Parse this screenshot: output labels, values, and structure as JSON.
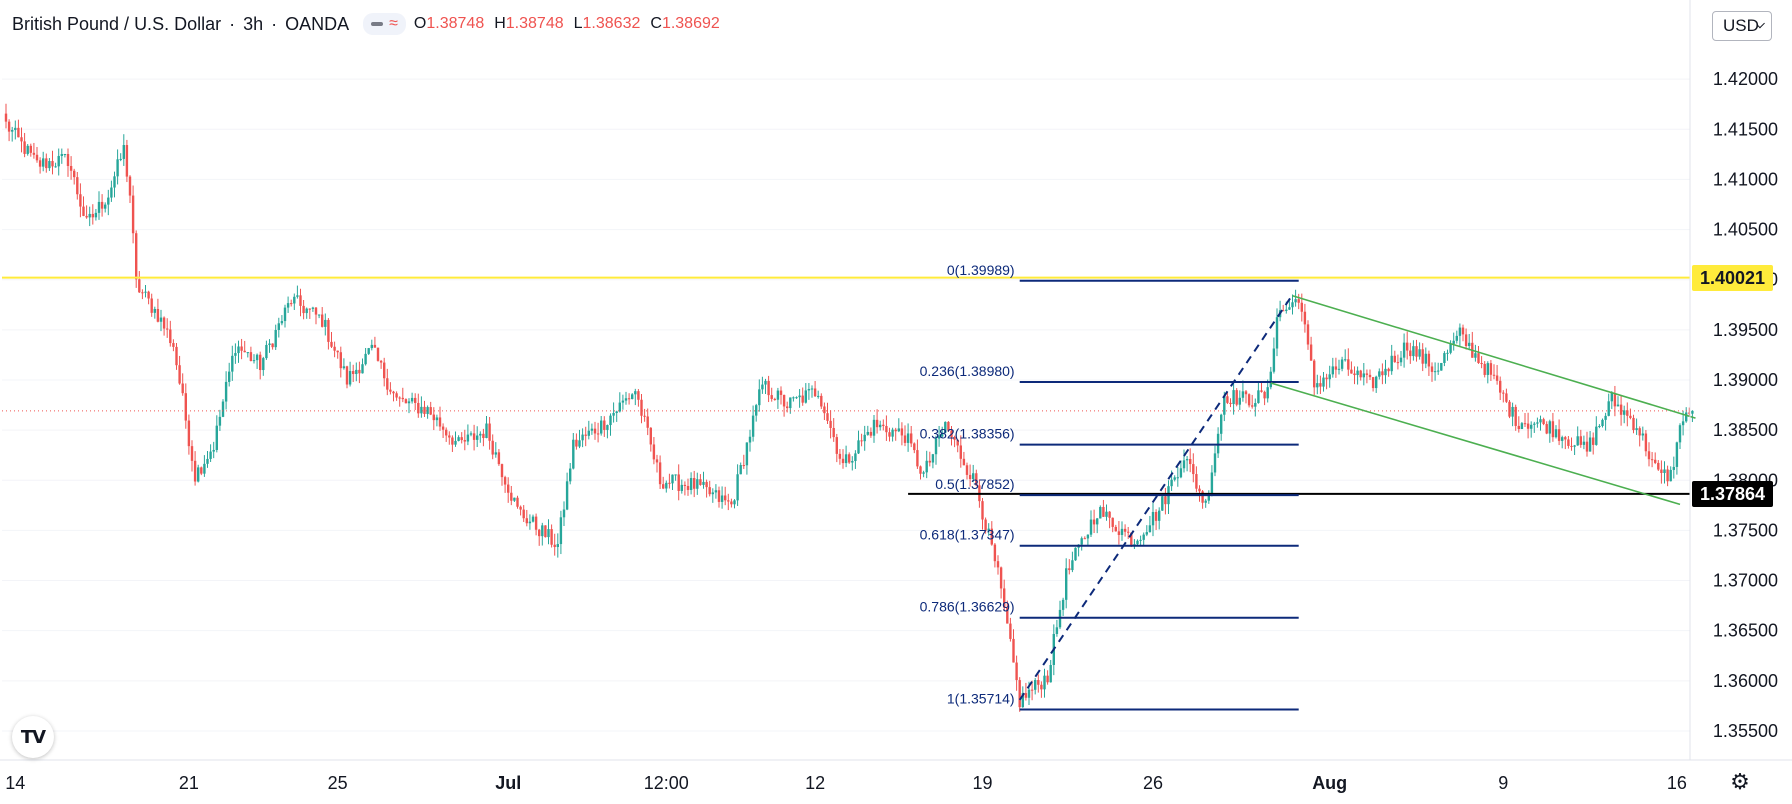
{
  "header": {
    "symbol": "British Pound / U.S. Dollar",
    "interval": "3h",
    "exchange": "OANDA",
    "ohlc": [
      {
        "label": "O",
        "value": "1.38748"
      },
      {
        "label": "H",
        "value": "1.38748"
      },
      {
        "label": "L",
        "value": "1.38632"
      },
      {
        "label": "C",
        "value": "1.38692"
      }
    ]
  },
  "currency_button": "USD",
  "logo_text": "TV",
  "colors": {
    "up": "#26a69a",
    "down": "#ef5350",
    "resistance": "#ffeb3b",
    "support": "#000000",
    "fib": "#0d2a7a",
    "channel": "#4caf50",
    "last_price": "#ef5350"
  },
  "icons": {
    "indicator": "wave-icon",
    "settings": "gear-icon",
    "logo": "tradingview-logo-icon"
  },
  "chart_data": {
    "type": "candlestick",
    "ylim": [
      1.3535,
      1.4255
    ],
    "y_ticks": [
      "1.42000",
      "1.41500",
      "1.41000",
      "1.40500",
      "1.40000",
      "1.39500",
      "1.39000",
      "1.38500",
      "1.38000",
      "1.37500",
      "1.37000",
      "1.36500",
      "1.36000",
      "1.35500"
    ],
    "y_tick_values": [
      1.42,
      1.415,
      1.41,
      1.405,
      1.4,
      1.395,
      1.39,
      1.385,
      1.38,
      1.375,
      1.37,
      1.365,
      1.36,
      1.355
    ],
    "x_ticks": [
      "14",
      "21",
      "25",
      "Jul",
      "12:00",
      "12",
      "19",
      "26",
      "Aug",
      "9",
      "16"
    ],
    "x_tick_bars": [
      3,
      59,
      107,
      162,
      213,
      261,
      315,
      370,
      427,
      483,
      539
    ],
    "bar_count": 545,
    "last_price": 1.38692,
    "horizontal_levels": [
      {
        "name": "resistance",
        "value": 1.40021,
        "label": "1.40021"
      },
      {
        "name": "support",
        "value": 1.37864,
        "label": "1.37864"
      }
    ],
    "fibonacci": {
      "start_bar": 327,
      "end_bar": 417,
      "label_end_bar": 326,
      "levels": [
        {
          "label": "0(1.39989)",
          "value": 1.39989
        },
        {
          "label": "0.236(1.38980)",
          "value": 1.3898
        },
        {
          "label": "0.382(1.38356)",
          "value": 1.38356
        },
        {
          "label": "0.5(1.37852)",
          "value": 1.37852
        },
        {
          "label": "0.618(1.37347)",
          "value": 1.37347
        },
        {
          "label": "0.786(1.36629)",
          "value": 1.36629
        },
        {
          "label": "1(1.35714)",
          "value": 1.35714
        }
      ],
      "trend_from": {
        "bar": 327,
        "value": 1.3581
      },
      "trend_to": {
        "bar": 415,
        "value": 1.3985
      }
    },
    "channel": {
      "upper": {
        "from_bar": 415,
        "from_value": 1.3984,
        "to_bar": 545,
        "to_value": 1.3862
      },
      "lower": {
        "from_bar": 408,
        "from_value": 1.3897,
        "to_bar": 540,
        "to_value": 1.3776
      }
    },
    "anchors": [
      {
        "bar": 0,
        "value": 1.4155
      },
      {
        "bar": 10,
        "value": 1.4115
      },
      {
        "bar": 20,
        "value": 1.412
      },
      {
        "bar": 26,
        "value": 1.4055
      },
      {
        "bar": 33,
        "value": 1.4085
      },
      {
        "bar": 38,
        "value": 1.413
      },
      {
        "bar": 40,
        "value": 1.4085
      },
      {
        "bar": 42,
        "value": 1.3995
      },
      {
        "bar": 49,
        "value": 1.3965
      },
      {
        "bar": 54,
        "value": 1.3935
      },
      {
        "bar": 61,
        "value": 1.3805
      },
      {
        "bar": 67,
        "value": 1.3835
      },
      {
        "bar": 74,
        "value": 1.3935
      },
      {
        "bar": 82,
        "value": 1.3915
      },
      {
        "bar": 92,
        "value": 1.398
      },
      {
        "bar": 102,
        "value": 1.396
      },
      {
        "bar": 110,
        "value": 1.39
      },
      {
        "bar": 118,
        "value": 1.393
      },
      {
        "bar": 126,
        "value": 1.388
      },
      {
        "bar": 136,
        "value": 1.387
      },
      {
        "bar": 146,
        "value": 1.3835
      },
      {
        "bar": 155,
        "value": 1.385
      },
      {
        "bar": 165,
        "value": 1.377
      },
      {
        "bar": 178,
        "value": 1.3735
      },
      {
        "bar": 183,
        "value": 1.3835
      },
      {
        "bar": 192,
        "value": 1.3855
      },
      {
        "bar": 203,
        "value": 1.389
      },
      {
        "bar": 211,
        "value": 1.38
      },
      {
        "bar": 222,
        "value": 1.3795
      },
      {
        "bar": 234,
        "value": 1.3775
      },
      {
        "bar": 244,
        "value": 1.3895
      },
      {
        "bar": 252,
        "value": 1.3875
      },
      {
        "bar": 262,
        "value": 1.389
      },
      {
        "bar": 270,
        "value": 1.3815
      },
      {
        "bar": 280,
        "value": 1.3855
      },
      {
        "bar": 290,
        "value": 1.3845
      },
      {
        "bar": 296,
        "value": 1.3805
      },
      {
        "bar": 303,
        "value": 1.3855
      },
      {
        "bar": 313,
        "value": 1.3795
      },
      {
        "bar": 320,
        "value": 1.3705
      },
      {
        "bar": 327,
        "value": 1.358
      },
      {
        "bar": 336,
        "value": 1.3605
      },
      {
        "bar": 342,
        "value": 1.3705
      },
      {
        "bar": 352,
        "value": 1.377
      },
      {
        "bar": 364,
        "value": 1.374
      },
      {
        "bar": 372,
        "value": 1.377
      },
      {
        "bar": 380,
        "value": 1.3825
      },
      {
        "bar": 387,
        "value": 1.3775
      },
      {
        "bar": 393,
        "value": 1.3885
      },
      {
        "bar": 401,
        "value": 1.388
      },
      {
        "bar": 407,
        "value": 1.3885
      },
      {
        "bar": 410,
        "value": 1.3965
      },
      {
        "bar": 415,
        "value": 1.3975
      },
      {
        "bar": 417,
        "value": 1.3985
      },
      {
        "bar": 422,
        "value": 1.3895
      },
      {
        "bar": 431,
        "value": 1.3915
      },
      {
        "bar": 440,
        "value": 1.3895
      },
      {
        "bar": 452,
        "value": 1.3935
      },
      {
        "bar": 461,
        "value": 1.391
      },
      {
        "bar": 469,
        "value": 1.3945
      },
      {
        "bar": 479,
        "value": 1.3905
      },
      {
        "bar": 487,
        "value": 1.386
      },
      {
        "bar": 497,
        "value": 1.3855
      },
      {
        "bar": 510,
        "value": 1.383
      },
      {
        "bar": 518,
        "value": 1.388
      },
      {
        "bar": 526,
        "value": 1.3855
      },
      {
        "bar": 533,
        "value": 1.3805
      },
      {
        "bar": 537,
        "value": 1.3805
      },
      {
        "bar": 541,
        "value": 1.3865
      },
      {
        "bar": 544,
        "value": 1.38692
      }
    ]
  }
}
